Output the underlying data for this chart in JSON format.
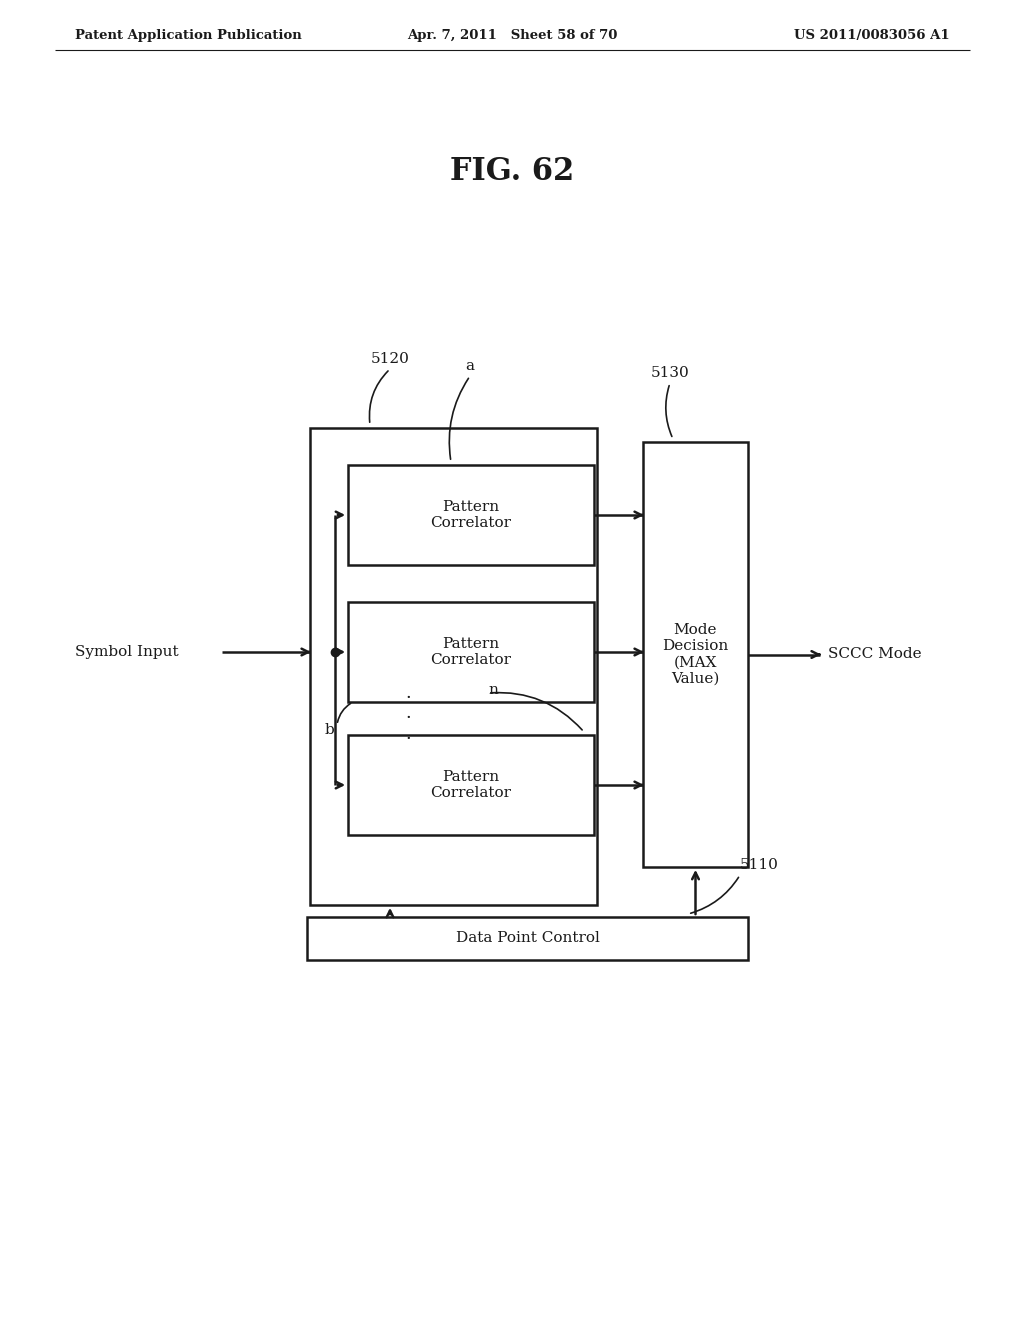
{
  "bg_color": "#ffffff",
  "text_color": "#1a1a1a",
  "header_left": "Patent Application Publication",
  "header_mid": "Apr. 7, 2011   Sheet 58 of 70",
  "header_right": "US 2011/0083056 A1",
  "fig_title": "FIG. 62",
  "label_5120": "5120",
  "label_5130": "5130",
  "label_5110": "5110",
  "label_a": "a",
  "label_b": "b",
  "label_n": "n",
  "label_symbol_input": "Symbol Input",
  "label_sccc_mode": "SCCC Mode",
  "label_pc1": "Pattern\nCorrelator",
  "label_pc2": "Pattern\nCorrelator",
  "label_pc3": "Pattern\nCorrelator",
  "label_mode_decision": "Mode\nDecision\n(MAX\nValue)",
  "label_data_point": "Data Point Control"
}
